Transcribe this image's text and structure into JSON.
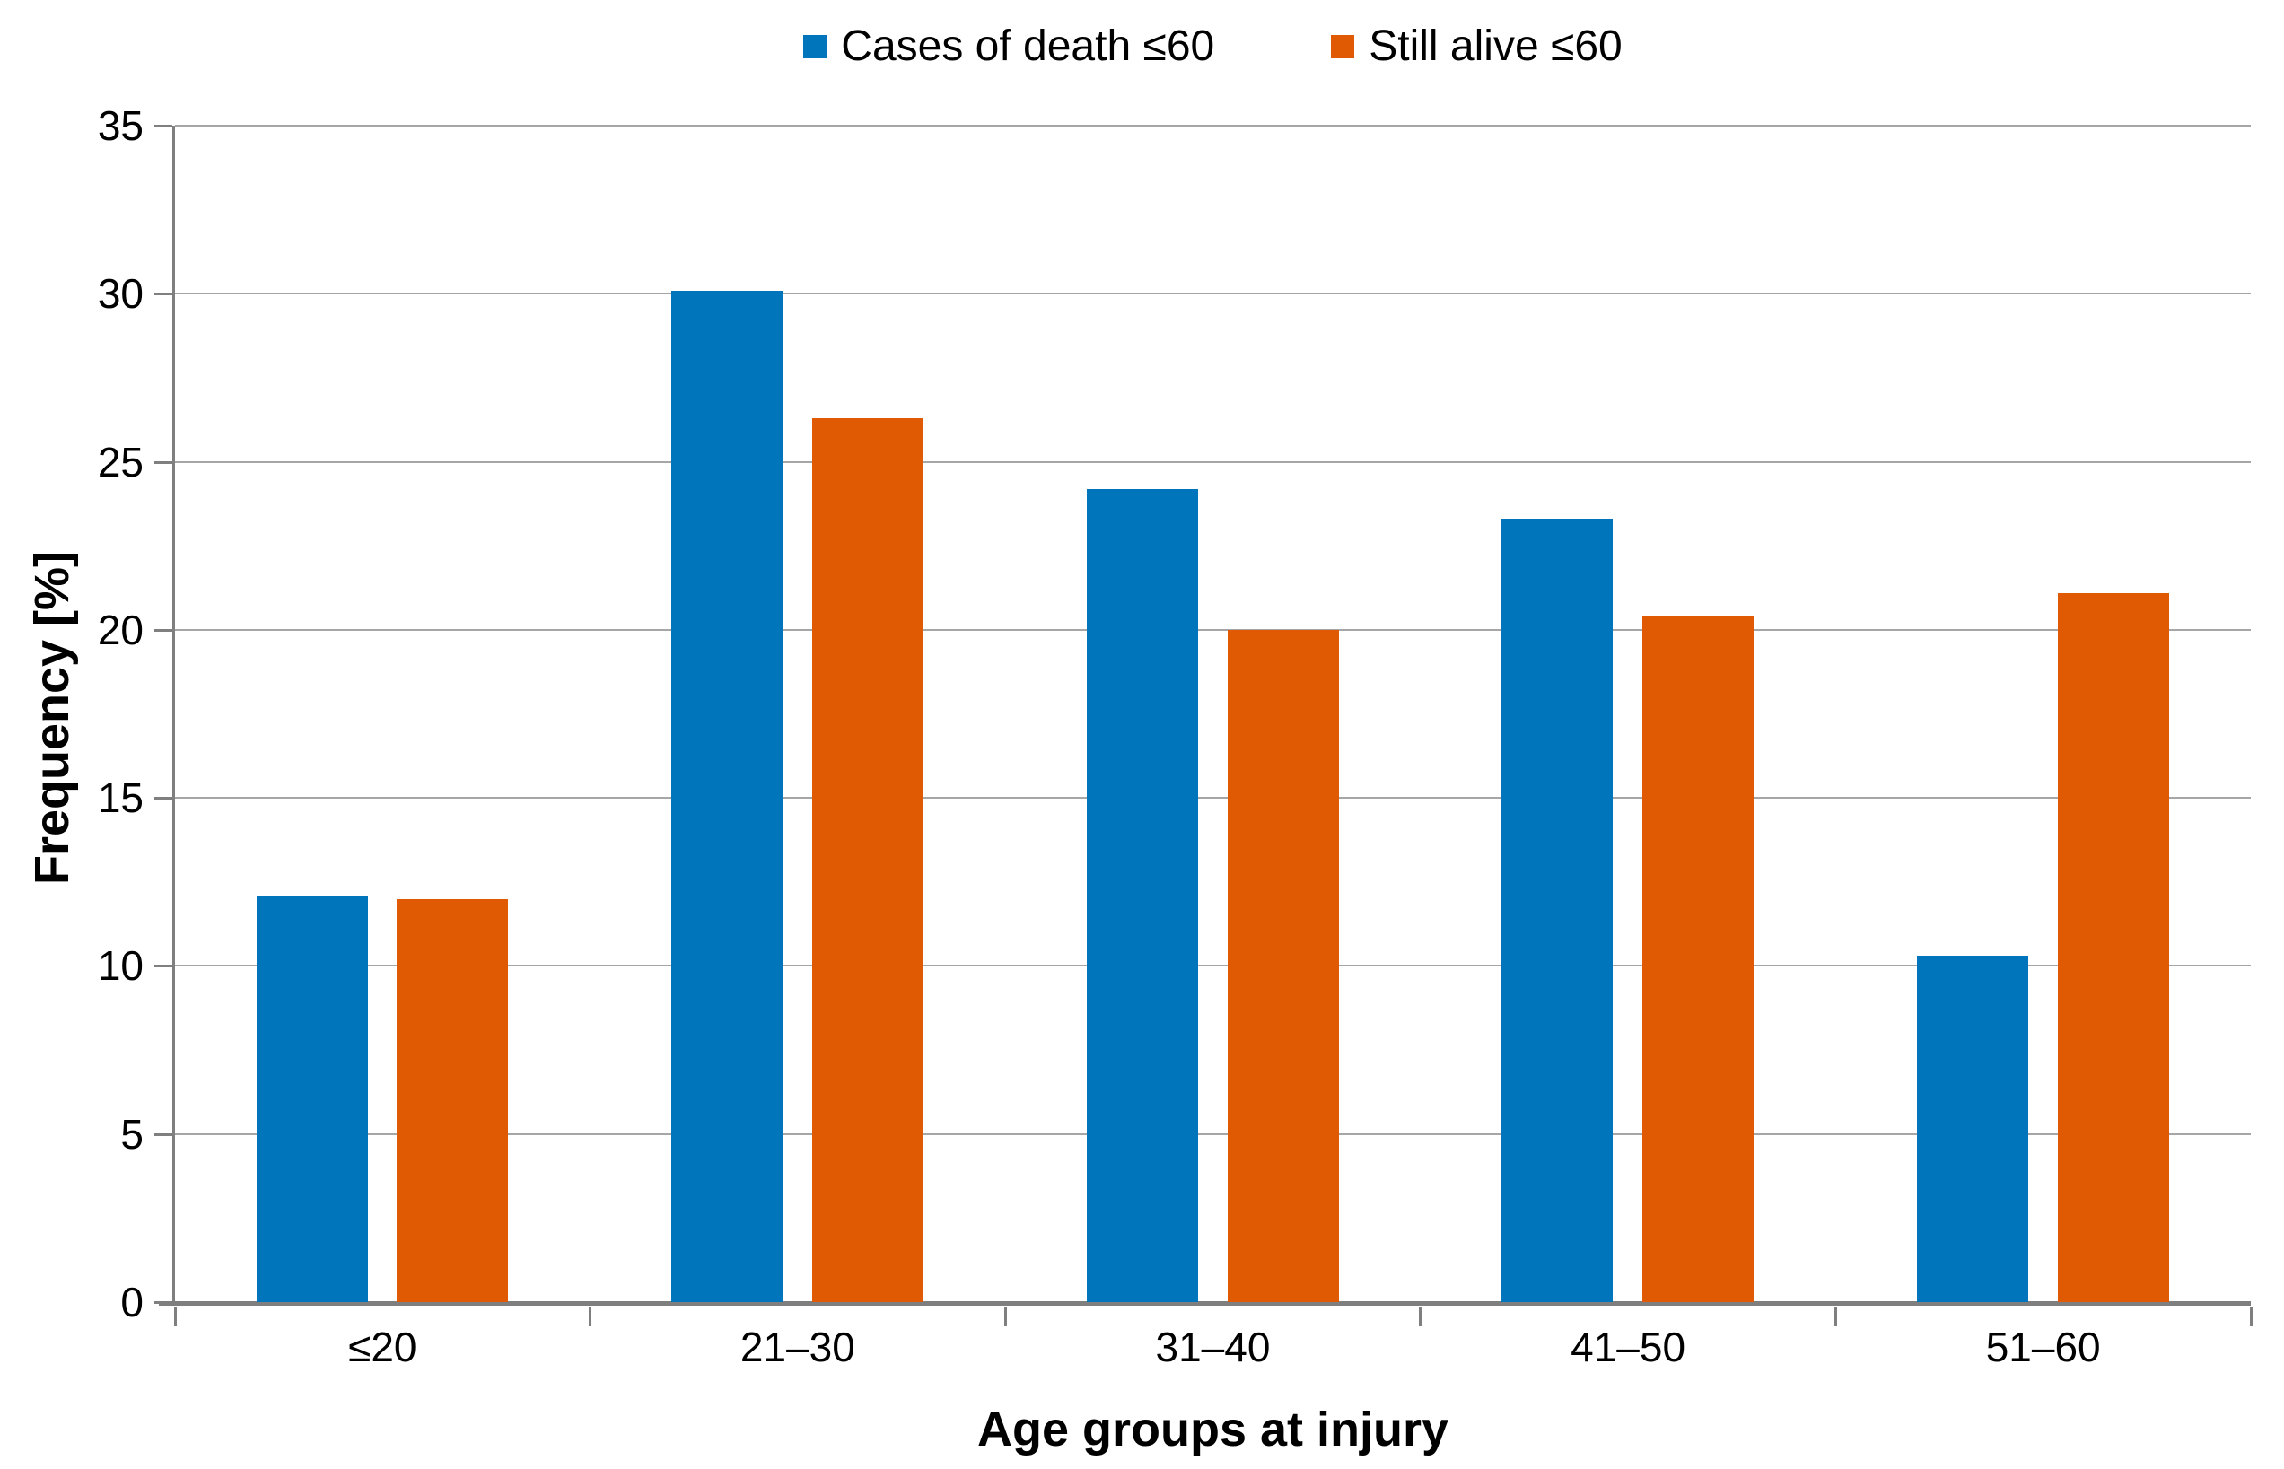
{
  "chart_data": {
    "type": "bar",
    "title": "",
    "categories": [
      "≤20",
      "21–30",
      "31–40",
      "41–50",
      "51–60"
    ],
    "series": [
      {
        "name": "Cases of death ≤60",
        "color": "#0075BC",
        "values": [
          12.1,
          30.1,
          24.2,
          23.3,
          10.3
        ]
      },
      {
        "name": "Still alive ≤60",
        "color": "#E05A04",
        "values": [
          12.0,
          26.3,
          20.0,
          20.4,
          21.1
        ]
      }
    ],
    "xlabel": "Age groups at injury",
    "ylabel": "Frequency [%]",
    "ylim": [
      0,
      35
    ],
    "yticks": [
      0,
      5,
      10,
      15,
      20,
      25,
      30,
      35
    ],
    "grid": "horizontal",
    "legend_position": "top-center",
    "colors": {
      "gridline": "#A6A6A6",
      "axis": "#7F7F7F",
      "text": "#000000",
      "background": "#FFFFFF"
    }
  }
}
